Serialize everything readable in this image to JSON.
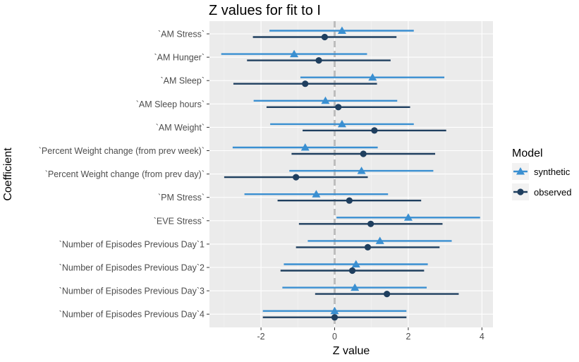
{
  "chart_data": {
    "type": "scatter",
    "title": "Z values for fit to I",
    "xlabel": "Z value",
    "ylabel": "Coefficient",
    "xlim": [
      -3.4,
      4.3
    ],
    "xticks": [
      "-2",
      "0",
      "2",
      "4"
    ],
    "xtick_values": [
      -2,
      0,
      2,
      4
    ],
    "reference_line_x": 0,
    "grid": true,
    "legend_title": "Model",
    "legend_position": "right",
    "categories": [
      "`AM Stress`",
      "`AM Hunger`",
      "`AM Sleep`",
      "`AM Sleep hours`",
      "`AM Weight`",
      "`Percent Weight change (from prev week)`",
      "`Percent Weight change (from prev day)`",
      "`PM Stress`",
      "`EVE Stress`",
      "`Number of Episodes Previous Day`1",
      "`Number of Episodes Previous Day`2",
      "`Number of Episodes Previous Day`3",
      "`Number of Episodes Previous Day`4"
    ],
    "series": [
      {
        "name": "synthetic",
        "color": "#3a8fd1",
        "marker": "triangle",
        "values": [
          0.2,
          -1.1,
          1.03,
          -0.25,
          0.2,
          -0.8,
          0.73,
          -0.5,
          2.0,
          1.23,
          0.58,
          0.55,
          0.0
        ],
        "lower": [
          -1.77,
          -3.08,
          -0.93,
          -2.2,
          -1.75,
          -2.77,
          -1.23,
          -2.45,
          0.05,
          -0.73,
          -1.38,
          -1.42,
          -1.95
        ],
        "upper": [
          2.15,
          0.88,
          2.98,
          1.7,
          2.15,
          1.17,
          2.68,
          1.45,
          3.95,
          3.18,
          2.53,
          2.5,
          1.95
        ]
      },
      {
        "name": "observed",
        "color": "#1f3f5f",
        "marker": "circle",
        "values": [
          -0.27,
          -0.43,
          -0.8,
          0.1,
          1.08,
          0.78,
          -1.05,
          0.4,
          0.98,
          0.9,
          0.48,
          1.42,
          0.0
        ],
        "lower": [
          -2.22,
          -2.38,
          -2.75,
          -1.85,
          -0.87,
          -1.17,
          -3.0,
          -1.55,
          -0.97,
          -1.05,
          -1.47,
          -0.53,
          -1.95
        ],
        "upper": [
          1.68,
          1.52,
          1.15,
          2.05,
          3.03,
          2.73,
          0.9,
          2.35,
          2.93,
          2.85,
          2.43,
          3.37,
          1.95
        ]
      }
    ]
  }
}
